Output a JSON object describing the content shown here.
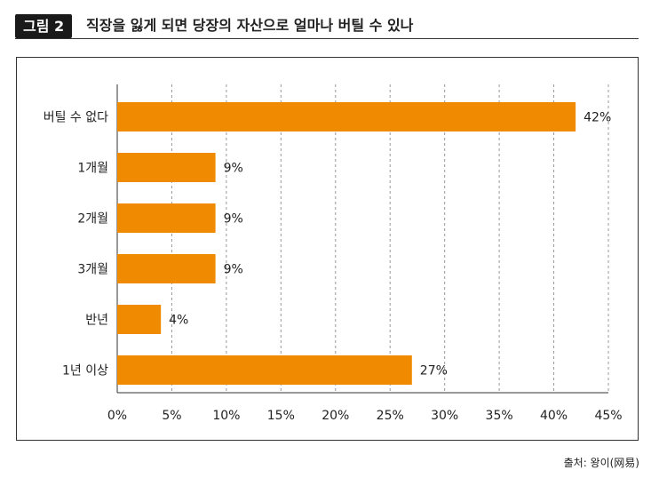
{
  "figure": {
    "badge": "그림 2",
    "title": "직장을 잃게 되면 당장의 자산으로 얼마나 버틸 수 있나"
  },
  "source": "출처: 왕이(网易)",
  "colors": {
    "bar": "#F08A00",
    "grid": "#999999",
    "axis": "#333333"
  },
  "chart_data": {
    "type": "bar",
    "orientation": "horizontal",
    "categories": [
      "버틸 수 없다",
      "1개월",
      "2개월",
      "3개월",
      "반년",
      "1년 이상"
    ],
    "values": [
      42,
      9,
      9,
      9,
      4,
      27
    ],
    "value_labels": [
      "42%",
      "9%",
      "9%",
      "9%",
      "4%",
      "27%"
    ],
    "x_ticks": [
      "0%",
      "5%",
      "10%",
      "15%",
      "20%",
      "25%",
      "30%",
      "35%",
      "40%",
      "45%"
    ],
    "xlim": [
      0,
      45
    ],
    "grid": "vertical-dashed",
    "legend": "none"
  }
}
